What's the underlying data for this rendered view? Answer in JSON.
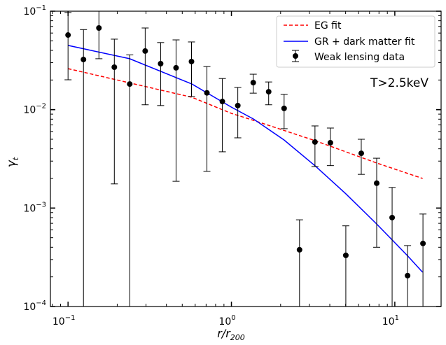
{
  "chart_data": {
    "type": "scatter",
    "xscale": "log",
    "yscale": "log",
    "xlim": [
      0.078,
      19.2
    ],
    "ylim": [
      0.0001,
      0.1
    ],
    "xlabel": "r/r",
    "xlabel_sub": "200",
    "ylabel": "γ",
    "ylabel_sub": "t",
    "x_ticks": [
      {
        "value": 0.1,
        "base": "10",
        "exp": "−1"
      },
      {
        "value": 1,
        "base": "10",
        "exp": "0"
      },
      {
        "value": 10,
        "base": "10",
        "exp": "1"
      }
    ],
    "y_ticks": [
      {
        "value": 0.1,
        "base": "10",
        "exp": "−1"
      },
      {
        "value": 0.01,
        "base": "10",
        "exp": "−2"
      },
      {
        "value": 0.001,
        "base": "10",
        "exp": "−3"
      },
      {
        "value": 0.0001,
        "base": "10",
        "exp": "−4"
      }
    ],
    "annotation": "T>2.5keV",
    "legend_position": "top-right",
    "series": [
      {
        "name": "EG fit",
        "kind": "line",
        "style": "dashed",
        "color": "#ff0000",
        "x": [
          0.1,
          0.573,
          1.0,
          1.365,
          3.25,
          7.74,
          14.8
        ],
        "y": [
          0.0261,
          0.01336,
          0.00917,
          0.00778,
          0.00484,
          0.00287,
          0.002
        ]
      },
      {
        "name": "GR + dark matter fit",
        "kind": "line",
        "style": "solid",
        "color": "#0000ff",
        "x": [
          0.1,
          0.238,
          0.573,
          1.0,
          1.365,
          2.1,
          3.25,
          5.01,
          7.74,
          11.9,
          14.8
        ],
        "y": [
          0.0449,
          0.0329,
          0.0182,
          0.0106,
          0.00803,
          0.00492,
          0.00269,
          0.0014,
          0.00069,
          0.000331,
          0.000223
        ]
      },
      {
        "name": "Weak lensing data",
        "kind": "errorbar",
        "color": "#000000",
        "x": [
          0.1,
          0.1243,
          0.1545,
          0.192,
          0.2386,
          0.2966,
          0.3687,
          0.4583,
          0.5696,
          0.708,
          0.88,
          1.094,
          1.36,
          1.69,
          2.101,
          2.611,
          3.246,
          4.034,
          5.014,
          6.232,
          7.746,
          9.628,
          11.97,
          14.87
        ],
        "y": [
          0.0573,
          0.0323,
          0.0675,
          0.027,
          0.0182,
          0.0394,
          0.0293,
          0.0266,
          0.0308,
          0.0148,
          0.0121,
          0.011,
          0.0188,
          0.0152,
          0.0103,
          0.000377,
          0.00469,
          0.00461,
          0.000331,
          0.0036,
          0.00179,
          0.0008,
          0.000206,
          0.000437
        ],
        "y_upper": [
          0.097,
          0.065,
          0.1,
          0.052,
          0.036,
          0.0675,
          0.048,
          0.0511,
          0.0487,
          0.0274,
          0.0207,
          0.0168,
          0.0229,
          0.0191,
          0.0143,
          0.00076,
          0.00683,
          0.0065,
          0.00066,
          0.005,
          0.00321,
          0.00162,
          0.000416,
          0.00087
        ],
        "y_lower": [
          0.0201,
          null,
          0.0329,
          0.00176,
          null,
          0.0112,
          0.011,
          0.00187,
          0.0136,
          0.00236,
          0.00373,
          0.00517,
          0.0147,
          0.0112,
          0.0064,
          null,
          0.00264,
          0.0027,
          null,
          0.0022,
          0.0004,
          null,
          null,
          null
        ]
      }
    ]
  }
}
